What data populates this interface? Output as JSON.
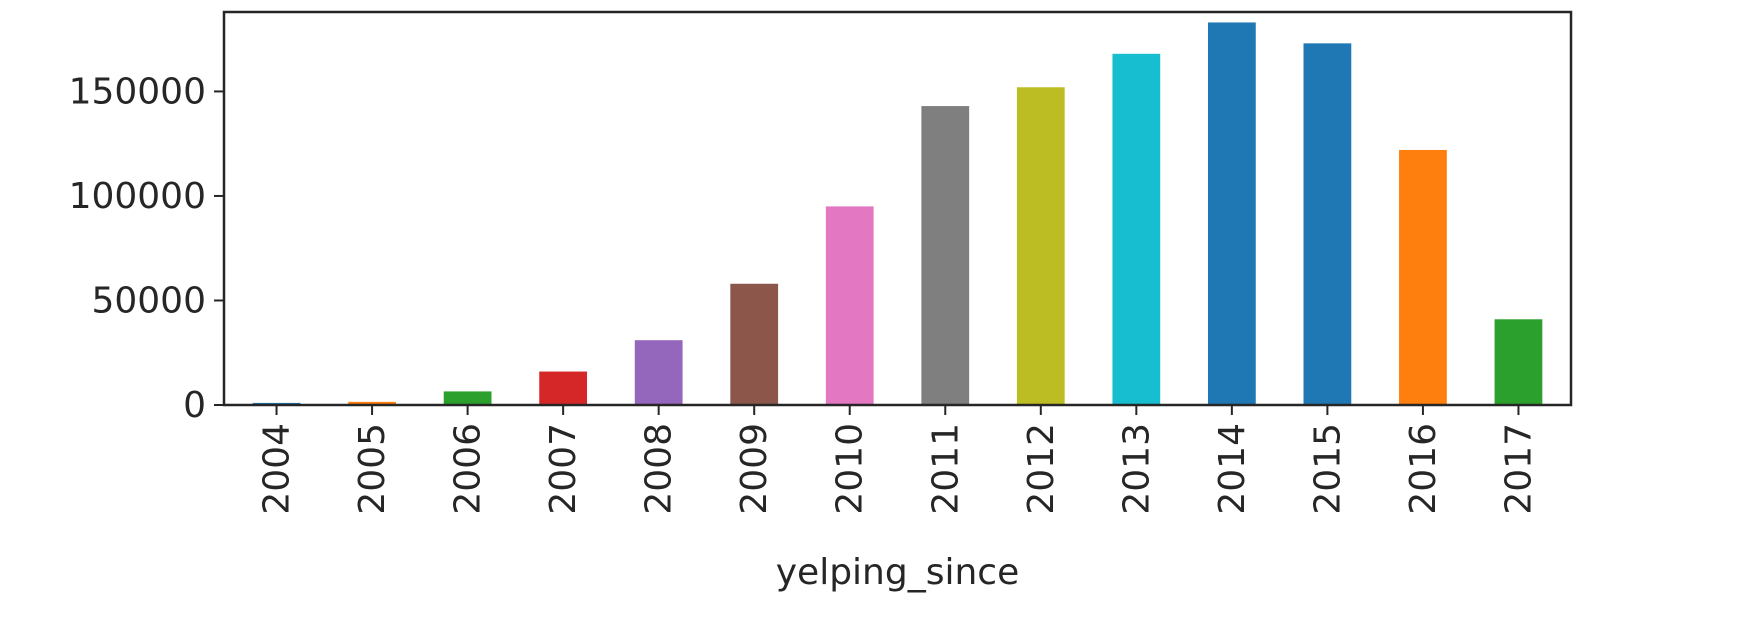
{
  "chart_data": {
    "type": "bar",
    "categories": [
      "2004",
      "2005",
      "2006",
      "2007",
      "2008",
      "2009",
      "2010",
      "2011",
      "2012",
      "2013",
      "2014",
      "2015",
      "2016",
      "2017"
    ],
    "values": [
      1000,
      1500,
      6500,
      16000,
      31000,
      58000,
      95000,
      143000,
      152000,
      168000,
      183000,
      173000,
      122000,
      41000
    ],
    "colors": [
      "#1f77b4",
      "#ff7f0e",
      "#2ca02c",
      "#d62728",
      "#9467bd",
      "#8c564b",
      "#e377c2",
      "#7f7f7f",
      "#bcbd22",
      "#17becf",
      "#1f77b4",
      "#1f77b4",
      "#ff7f0e",
      "#2ca02c"
    ],
    "title": "",
    "xlabel": "yelping_since",
    "ylabel": "",
    "ylim": [
      0,
      188000
    ],
    "yticks": [
      0,
      50000,
      100000,
      150000
    ],
    "ytick_labels": [
      "0",
      "50000",
      "100000",
      "150000"
    ],
    "grid": false,
    "legend": "none"
  }
}
